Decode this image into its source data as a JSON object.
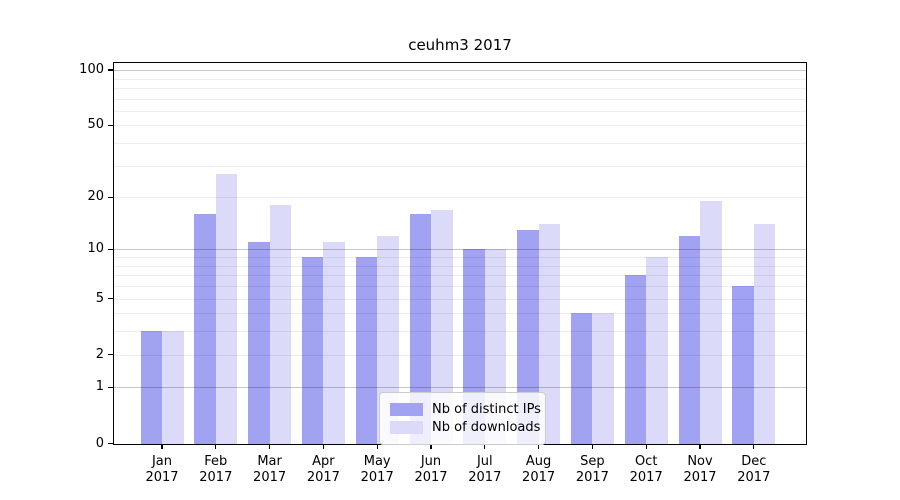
{
  "chart_data": {
    "type": "bar",
    "title": "ceuhm3 2017",
    "x_categories": [
      "Jan",
      "Feb",
      "Mar",
      "Apr",
      "May",
      "Jun",
      "Jul",
      "Aug",
      "Sep",
      "Oct",
      "Nov",
      "Dec"
    ],
    "x_year_label": "2017",
    "series": [
      {
        "name": "Nb of distinct IPs",
        "color": "#a2a2f2",
        "values": [
          3,
          16,
          11,
          9,
          9,
          16,
          10,
          13,
          4,
          7,
          12,
          6
        ]
      },
      {
        "name": "Nb of downloads",
        "color": "#dbdbf9",
        "values": [
          3,
          27,
          18,
          11,
          12,
          17,
          10,
          14,
          4,
          9,
          19,
          14
        ]
      }
    ],
    "yscale": "log(1+x)",
    "ylim": [
      0,
      110
    ],
    "y_tick_labels": [
      100,
      50,
      20,
      10,
      5,
      2,
      1,
      0
    ],
    "grid": "on",
    "grid_major": [
      1,
      10,
      100
    ],
    "grid_minor": [
      2,
      3,
      4,
      5,
      6,
      7,
      8,
      9,
      20,
      30,
      40,
      50,
      60,
      70,
      80,
      90
    ],
    "legend": {
      "position": "lower-center-inside",
      "entries": [
        "Nb of distinct IPs",
        "Nb of downloads"
      ]
    }
  }
}
